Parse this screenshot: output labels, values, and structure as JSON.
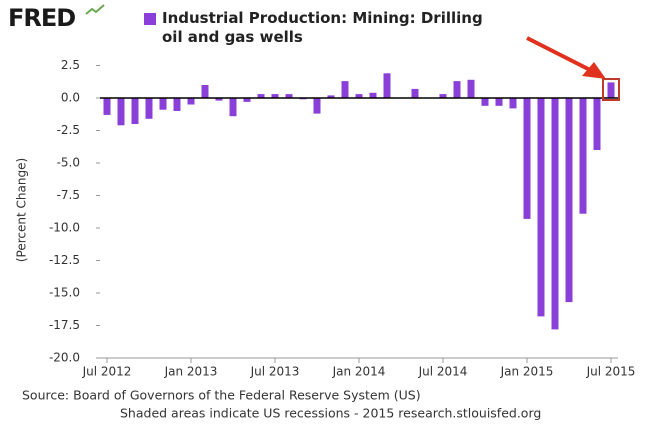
{
  "logo": "FRED",
  "chart_data": {
    "type": "bar",
    "series": [
      {
        "name": "Industrial Production: Mining: Drilling oil and gas wells",
        "color": "#8a3fd9",
        "values": [
          -1.3,
          -2.1,
          -2.0,
          -1.6,
          -0.9,
          -1.0,
          -0.5,
          1.0,
          -0.2,
          -1.4,
          -0.3,
          0.3,
          0.3,
          0.3,
          -0.1,
          -1.2,
          0.2,
          1.3,
          0.3,
          0.4,
          1.9,
          0.0,
          0.7,
          0.0,
          0.3,
          1.3,
          1.4,
          -0.6,
          -0.6,
          -0.8,
          -9.3,
          -16.8,
          -17.8,
          -15.7,
          -8.9,
          -4.0,
          1.2
        ]
      }
    ],
    "categories": [
      "Jul 2012",
      null,
      null,
      null,
      null,
      null,
      "Jan 2013",
      null,
      null,
      null,
      null,
      null,
      "Jul 2013",
      null,
      null,
      null,
      null,
      null,
      "Jan 2014",
      null,
      null,
      null,
      null,
      null,
      "Jul 2014",
      null,
      null,
      null,
      null,
      null,
      "Jan 2015",
      null,
      null,
      null,
      null,
      null,
      "Jul 2015"
    ],
    "y_label": "(Percent Change)",
    "ylim": [
      -20,
      3
    ],
    "yticks": [
      2.5,
      {
        "value": 0,
        "label": "0.0"
      },
      -2.5,
      {
        "value": -5,
        "label": "-5.0"
      },
      -7.5,
      {
        "value": -10,
        "label": "-10.0"
      },
      -12.5,
      {
        "value": -15,
        "label": "-15.0"
      },
      -17.5,
      {
        "value": -20,
        "label": "-20.0"
      }
    ],
    "source": "Source: Board of Governors of the Federal Reserve System (US)",
    "note": "Shaded areas indicate US recessions - 2015 research.stlouisfed.org"
  }
}
